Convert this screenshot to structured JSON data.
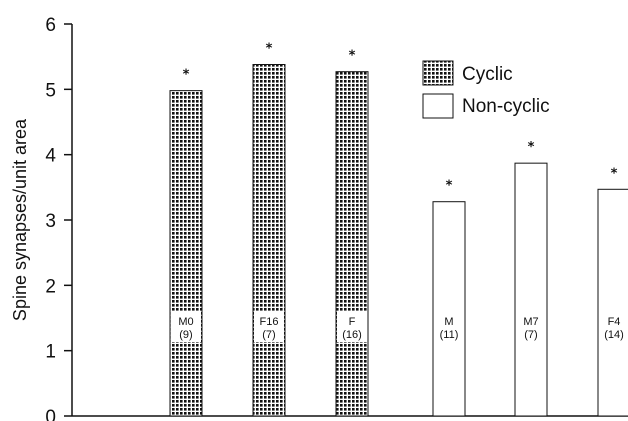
{
  "chart_data": {
    "type": "bar",
    "ylabel": "Spine synapses/unit area",
    "xlabel": "",
    "title": "",
    "ylim": [
      0,
      6
    ],
    "yticks": [
      0,
      1,
      2,
      3,
      4,
      5,
      6
    ],
    "grid": false,
    "legend_position": "upper-right",
    "legend": [
      {
        "name": "Cyclic",
        "pattern": "dotted-grid"
      },
      {
        "name": "Non-cyclic",
        "pattern": "none"
      }
    ],
    "bars": [
      {
        "label": "M0",
        "n": "(9)",
        "value": 4.98,
        "group": "Cyclic",
        "significance": "*"
      },
      {
        "label": "F16",
        "n": "(7)",
        "value": 5.38,
        "group": "Cyclic",
        "significance": "*"
      },
      {
        "label": "F",
        "n": "(16)",
        "value": 5.27,
        "group": "Cyclic",
        "significance": "*"
      },
      {
        "label": "M",
        "n": "(11)",
        "value": 3.28,
        "group": "Non-cyclic",
        "significance": "*"
      },
      {
        "label": "M7",
        "n": "(7)",
        "value": 3.87,
        "group": "Non-cyclic",
        "significance": "*"
      },
      {
        "label": "F4",
        "n": "(14)",
        "value": 3.47,
        "group": "Non-cyclic",
        "significance": "*"
      }
    ]
  }
}
